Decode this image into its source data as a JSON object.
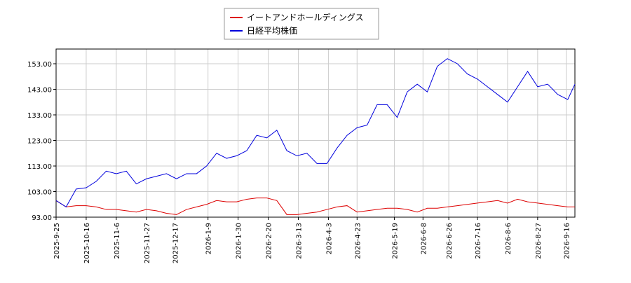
{
  "chart_data": {
    "type": "line",
    "x": [
      "2025-09-25",
      "2025-10-02",
      "2025-10-09",
      "2025-10-16",
      "2025-10-23",
      "2025-10-30",
      "2025-11-06",
      "2025-11-13",
      "2025-11-20",
      "2025-11-27",
      "2025-12-04",
      "2025-12-11",
      "2025-12-18",
      "2025-12-25",
      "2026-01-01",
      "2026-01-08",
      "2026-01-15",
      "2026-01-22",
      "2026-01-29",
      "2026-02-05",
      "2026-02-12",
      "2026-02-19",
      "2026-02-26",
      "2026-03-05",
      "2026-03-12",
      "2026-03-19",
      "2026-03-26",
      "2026-04-02",
      "2026-04-09",
      "2026-04-16",
      "2026-04-23",
      "2026-04-30",
      "2026-05-07",
      "2026-05-14",
      "2026-05-21",
      "2026-05-28",
      "2026-06-04",
      "2026-06-11",
      "2026-06-18",
      "2026-06-25",
      "2026-07-02",
      "2026-07-09",
      "2026-07-16",
      "2026-07-23",
      "2026-07-30",
      "2026-08-06",
      "2026-08-13",
      "2026-08-20",
      "2026-08-27",
      "2026-09-03",
      "2026-09-10",
      "2026-09-17",
      "2026-09-22"
    ],
    "series": [
      {
        "name": "イートアンドホールディングス",
        "color": "#dd0000",
        "values": [
          99.5,
          97,
          97.5,
          97.5,
          97,
          96,
          96,
          95.5,
          95,
          96,
          95.5,
          94.5,
          94,
          96,
          97,
          98,
          99.5,
          99,
          99,
          100,
          100.5,
          100.5,
          99.5,
          94,
          94,
          94.5,
          95,
          96,
          97,
          97.5,
          95,
          95.5,
          96,
          96.5,
          96.5,
          96,
          95,
          96.5,
          96.5,
          97,
          97.5,
          98,
          98.5,
          99,
          99.5,
          98.5,
          100,
          99,
          98.5,
          98,
          97.5,
          97,
          97
        ]
      },
      {
        "name": "日経平均株価",
        "color": "#0000dd",
        "values": [
          99.5,
          97,
          104,
          104.5,
          107,
          111,
          110,
          111,
          106,
          108,
          109,
          110,
          108,
          110,
          110,
          113,
          118,
          116,
          117,
          119,
          125,
          124,
          127,
          119,
          117,
          118,
          114,
          114,
          120,
          125,
          128,
          129,
          137,
          137,
          132,
          142,
          145,
          142,
          152,
          155,
          153,
          149,
          147,
          144,
          141,
          138,
          144,
          150,
          144,
          145,
          141,
          139,
          145
        ]
      }
    ],
    "xlim": [
      "2025-09-25",
      "2026-09-22"
    ],
    "xticks": [
      {
        "value": "2025-09-25",
        "label": "2025-9-25"
      },
      {
        "value": "2025-10-16",
        "label": "2025-10-16"
      },
      {
        "value": "2025-11-06",
        "label": "2025-11-6"
      },
      {
        "value": "2025-11-27",
        "label": "2025-11-27"
      },
      {
        "value": "2025-12-17",
        "label": "2025-12-17"
      },
      {
        "value": "2026-01-09",
        "label": "2026-1-9"
      },
      {
        "value": "2026-01-30",
        "label": "2026-1-30"
      },
      {
        "value": "2026-02-20",
        "label": "2026-2-20"
      },
      {
        "value": "2026-03-13",
        "label": "2026-3-13"
      },
      {
        "value": "2026-04-03",
        "label": "2026-4-3"
      },
      {
        "value": "2026-04-23",
        "label": "2026-4-23"
      },
      {
        "value": "2026-05-19",
        "label": "2026-5-19"
      },
      {
        "value": "2026-06-08",
        "label": "2026-6-8"
      },
      {
        "value": "2026-06-26",
        "label": "2026-6-26"
      },
      {
        "value": "2026-07-16",
        "label": "2026-7-16"
      },
      {
        "value": "2026-08-06",
        "label": "2026-8-6"
      },
      {
        "value": "2026-08-27",
        "label": "2026-8-27"
      },
      {
        "value": "2026-09-16",
        "label": "2026-9-16"
      }
    ],
    "ylim": [
      93,
      158.75
    ],
    "yticks": [
      {
        "value": 93,
        "label": "93.00"
      },
      {
        "value": 103,
        "label": "103.00"
      },
      {
        "value": 113,
        "label": "113.00"
      },
      {
        "value": 123,
        "label": "123.00"
      },
      {
        "value": 133,
        "label": "133.00"
      },
      {
        "value": 143,
        "label": "143.00"
      },
      {
        "value": 153,
        "label": "153.00"
      }
    ],
    "grid": true,
    "legend": "upper center"
  }
}
